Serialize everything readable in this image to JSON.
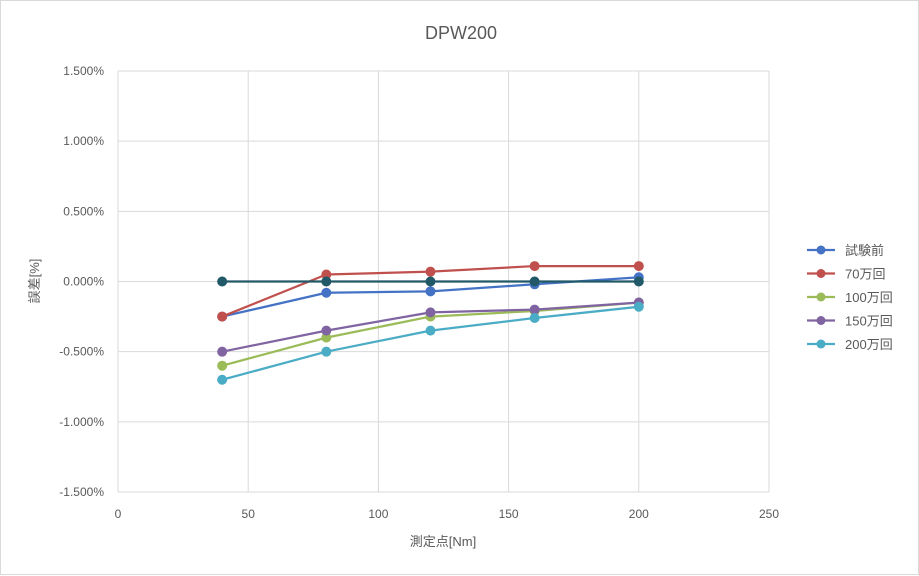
{
  "chart_data": {
    "type": "line",
    "title": "DPW200",
    "xlabel": "測定点[Nm]",
    "ylabel": "誤差[%]",
    "xlim": [
      0,
      250
    ],
    "ylim": [
      -1.5,
      1.5
    ],
    "x_ticks": [
      0,
      50,
      100,
      150,
      200,
      250
    ],
    "y_ticks": [
      -1.5,
      -1.0,
      -0.5,
      0.0,
      0.5,
      1.0,
      1.5
    ],
    "x_tick_labels": [
      "0",
      "50",
      "100",
      "150",
      "200",
      "250"
    ],
    "y_tick_labels": [
      "-1.500%",
      "-1.000%",
      "-0.500%",
      "0.000%",
      "0.500%",
      "1.000%",
      "1.500%"
    ],
    "grid": true,
    "legend_position": "right",
    "x": [
      40,
      80,
      120,
      160,
      200
    ],
    "series": [
      {
        "name": "試験前",
        "color": "#4472c4",
        "values": [
          -0.25,
          -0.08,
          -0.07,
          -0.02,
          0.03
        ]
      },
      {
        "name": "70万回",
        "color": "#c0504d",
        "values": [
          -0.25,
          0.05,
          0.07,
          0.11,
          0.11
        ]
      },
      {
        "name": "100万回",
        "color": "#9bbb59",
        "values": [
          -0.6,
          -0.4,
          -0.25,
          -0.21,
          -0.15
        ]
      },
      {
        "name": "150万回",
        "color": "#8064a2",
        "values": [
          -0.5,
          -0.35,
          -0.22,
          -0.2,
          -0.15
        ]
      },
      {
        "name": "200万回",
        "color": "#4bacc6",
        "values": [
          -0.7,
          -0.5,
          -0.35,
          -0.26,
          -0.18
        ]
      }
    ],
    "reference_line": {
      "color": "#215968",
      "values": [
        0,
        0,
        0,
        0,
        0
      ]
    }
  }
}
